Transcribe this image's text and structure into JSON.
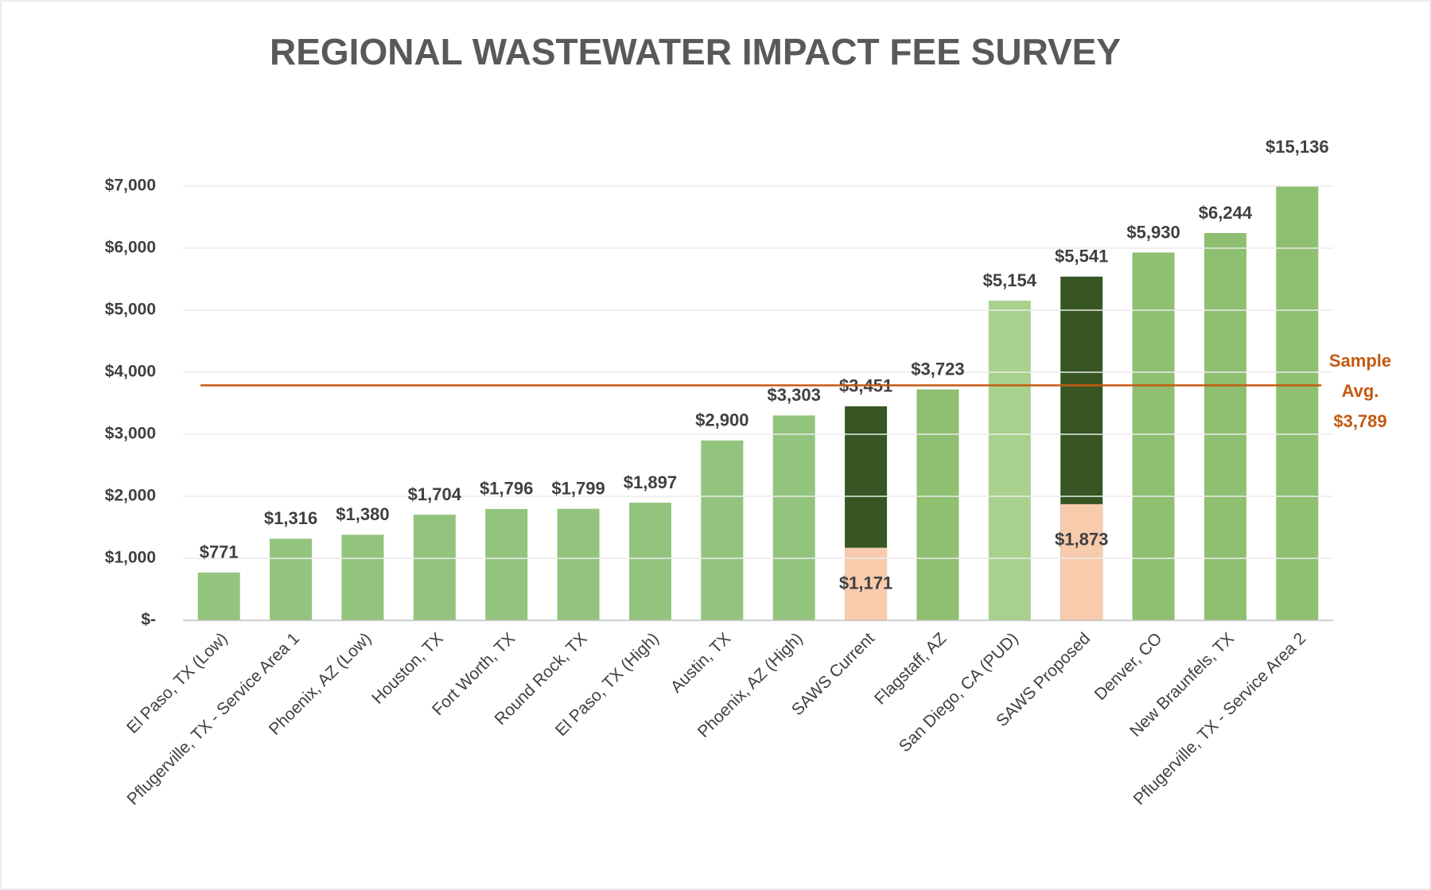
{
  "chart_data": {
    "type": "bar",
    "title": "REGIONAL WASTEWATER IMPACT FEE SURVEY",
    "categories": [
      "El Paso, TX (Low)",
      "Pflugerville, TX - Service Area 1",
      "Phoenix, AZ (Low)",
      "Houston, TX",
      "Fort Worth, TX",
      "Round Rock, TX",
      "El Paso, TX (High)",
      "Austin, TX",
      "Phoenix, AZ (High)",
      "SAWS Current",
      "Flagstaff, AZ",
      "San Diego, CA (PUD)",
      "SAWS Proposed",
      "Denver, CO",
      "New Braunfels, TX",
      "Pflugerville, TX - Service Area 2"
    ],
    "values": [
      771,
      1316,
      1380,
      1704,
      1796,
      1799,
      1897,
      2900,
      3303,
      3451,
      3723,
      5154,
      5541,
      5930,
      6244,
      15136
    ],
    "value_labels": [
      "$771",
      "$1,316",
      "$1,380",
      "$1,704",
      "$1,796",
      "$1,799",
      "$1,897",
      "$2,900",
      "$3,303",
      "$3,451",
      "$3,723",
      "$5,154",
      "$5,541",
      "$5,930",
      "$6,244",
      "$15,136"
    ],
    "colors": [
      "#93c47d",
      "#93c47d",
      "#93c47d",
      "#93c47d",
      "#93c47d",
      "#93c47d",
      "#93c47d",
      "#93c47d",
      "#93c47d",
      "#375623",
      "#8fbf70",
      "#a9d18e",
      "#375623",
      "#8fbf70",
      "#8fbf70",
      "#8fbf70"
    ],
    "inner_values": [
      null,
      null,
      null,
      null,
      null,
      null,
      null,
      null,
      null,
      1171,
      null,
      null,
      1873,
      null,
      null,
      null
    ],
    "inner_value_labels": [
      null,
      null,
      null,
      null,
      null,
      null,
      null,
      null,
      null,
      "$1,171",
      null,
      null,
      "$1,873",
      null,
      null,
      null
    ],
    "inner_color": "#f8cbad",
    "ylim": [
      0,
      7000
    ],
    "yticks": [
      {
        "value": 0,
        "label": "$-"
      },
      {
        "value": 1000,
        "label": "$1,000"
      },
      {
        "value": 2000,
        "label": "$2,000"
      },
      {
        "value": 3000,
        "label": "$3,000"
      },
      {
        "value": 4000,
        "label": "$4,000"
      },
      {
        "value": 5000,
        "label": "$5,000"
      },
      {
        "value": 6000,
        "label": "$6,000"
      },
      {
        "value": 7000,
        "label": "$7,000"
      }
    ],
    "grid": true,
    "reference_line": {
      "value": 3789,
      "color": "#c55a11",
      "label_lines": [
        "Sample",
        "Avg.",
        "$3,789"
      ]
    }
  }
}
